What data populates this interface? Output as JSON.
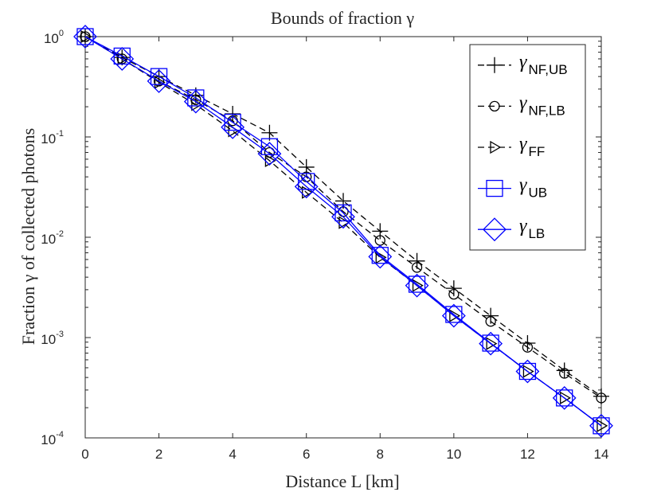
{
  "chart_data": {
    "type": "line",
    "title": "Bounds of fraction γ",
    "xlabel": "Distance L [km]",
    "ylabel": "Fraction γ of collected photons",
    "yscale": "log",
    "xlim": [
      0,
      14
    ],
    "ylim": [
      0.0001,
      1
    ],
    "xticks": [
      0,
      2,
      4,
      6,
      8,
      10,
      12,
      14
    ],
    "yticks": [
      {
        "value": 1,
        "mantissa": "10",
        "exp": "0"
      },
      {
        "value": 0.1,
        "mantissa": "10",
        "exp": "-1"
      },
      {
        "value": 0.01,
        "mantissa": "10",
        "exp": "-2"
      },
      {
        "value": 0.001,
        "mantissa": "10",
        "exp": "-3"
      },
      {
        "value": 0.0001,
        "mantissa": "10",
        "exp": "-4"
      }
    ],
    "legend_position": "top-right",
    "x": [
      0,
      1,
      2,
      3,
      4,
      5,
      6,
      7,
      8,
      9,
      10,
      11,
      12,
      13,
      14
    ],
    "series": [
      {
        "name": "γNF,UB",
        "gamma": "γ",
        "sub": "NF,UB",
        "color": "#000000",
        "dash": "dashed",
        "marker": "plus",
        "values": [
          1.0,
          0.62,
          0.4,
          0.26,
          0.17,
          0.11,
          0.05,
          0.023,
          0.0115,
          0.0058,
          0.0031,
          0.00165,
          0.00088,
          0.00047,
          0.00026
        ]
      },
      {
        "name": "γNF,LB",
        "gamma": "γ",
        "sub": "NF,LB",
        "color": "#000000",
        "dash": "dashed",
        "marker": "circle",
        "values": [
          1.0,
          0.6,
          0.36,
          0.235,
          0.145,
          0.07,
          0.04,
          0.018,
          0.0093,
          0.005,
          0.0027,
          0.00145,
          0.0008,
          0.00044,
          0.00025
        ]
      },
      {
        "name": "γFF",
        "gamma": "γ",
        "sub": "FF",
        "color": "#000000",
        "dash": "dashed",
        "marker": "triangle-right",
        "values": [
          1.0,
          0.6,
          0.35,
          0.21,
          0.115,
          0.058,
          0.028,
          0.014,
          0.0063,
          0.0033,
          0.00165,
          0.00087,
          0.00046,
          0.00025,
          0.000132
        ]
      },
      {
        "name": "γUB",
        "gamma": "γ",
        "sub": "UB",
        "color": "#0000ff",
        "dash": "solid",
        "marker": "square",
        "values": [
          1.0,
          0.64,
          0.4,
          0.245,
          0.14,
          0.08,
          0.036,
          0.0175,
          0.0066,
          0.0034,
          0.0017,
          0.00088,
          0.00046,
          0.00025,
          0.000132
        ]
      },
      {
        "name": "γLB",
        "gamma": "γ",
        "sub": "LB",
        "color": "#0000ff",
        "dash": "solid",
        "marker": "diamond",
        "values": [
          1.0,
          0.6,
          0.36,
          0.225,
          0.125,
          0.068,
          0.032,
          0.016,
          0.0064,
          0.0033,
          0.00165,
          0.00087,
          0.00046,
          0.00025,
          0.000132
        ]
      }
    ]
  }
}
